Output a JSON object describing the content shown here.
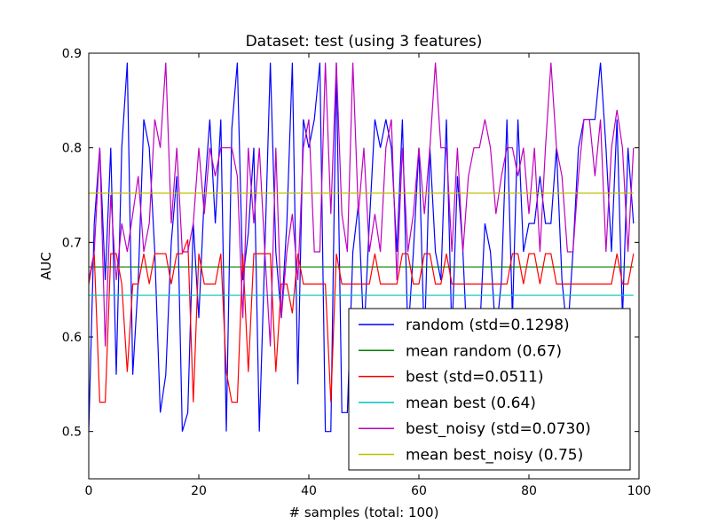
{
  "chart_data": {
    "type": "line",
    "title": "Dataset: test (using 3 features)",
    "xlabel": "# samples (total: 100)",
    "ylabel": "AUC",
    "xlim": [
      0,
      100
    ],
    "ylim": [
      0.45,
      0.9
    ],
    "xticks": [
      "0",
      "20",
      "40",
      "60",
      "80",
      "100"
    ],
    "yticks": [
      "0.5",
      "0.6",
      "0.7",
      "0.8",
      "0.9"
    ],
    "grid": false,
    "legend_position": "lower-right",
    "series": [
      {
        "name": "random (std=0.1298)",
        "color": "#0000ff",
        "x": [
          0,
          1,
          2,
          3,
          4,
          5,
          6,
          7,
          8,
          9,
          10,
          11,
          12,
          13,
          14,
          15,
          16,
          17,
          18,
          19,
          20,
          21,
          22,
          23,
          24,
          25,
          26,
          27,
          28,
          29,
          30,
          31,
          32,
          33,
          34,
          35,
          36,
          37,
          38,
          39,
          40,
          41,
          42,
          43,
          44,
          45,
          46,
          47,
          48,
          49,
          50,
          51,
          52,
          53,
          54,
          55,
          56,
          57,
          58,
          59,
          60,
          61,
          62,
          63,
          64,
          65,
          66,
          67,
          68,
          69,
          70,
          71,
          72,
          73,
          74,
          75,
          76,
          77,
          78,
          79,
          80,
          81,
          82,
          83,
          84,
          85,
          86,
          87,
          88,
          89,
          90,
          91,
          92,
          93,
          94,
          95,
          96,
          97,
          98,
          99
        ],
        "values": [
          0.5,
          0.72,
          0.8,
          0.66,
          0.8,
          0.56,
          0.8,
          0.89,
          0.56,
          0.66,
          0.83,
          0.8,
          0.69,
          0.52,
          0.56,
          0.7,
          0.77,
          0.5,
          0.52,
          0.72,
          0.62,
          0.75,
          0.83,
          0.72,
          0.83,
          0.5,
          0.82,
          0.89,
          0.66,
          0.71,
          0.8,
          0.5,
          0.69,
          0.89,
          0.69,
          0.62,
          0.72,
          0.89,
          0.55,
          0.83,
          0.8,
          0.83,
          0.89,
          0.5,
          0.5,
          0.89,
          0.52,
          0.52,
          0.69,
          0.74,
          0.6,
          0.72,
          0.83,
          0.8,
          0.83,
          0.8,
          0.69,
          0.83,
          0.6,
          0.69,
          0.8,
          0.59,
          0.8,
          0.69,
          0.66,
          0.83,
          0.6,
          0.77,
          0.69,
          0.56,
          0.52,
          0.6,
          0.72,
          0.69,
          0.6,
          0.66,
          0.83,
          0.62,
          0.83,
          0.69,
          0.72,
          0.72,
          0.77,
          0.72,
          0.72,
          0.8,
          0.66,
          0.6,
          0.69,
          0.8,
          0.83,
          0.83,
          0.83,
          0.89,
          0.8,
          0.69,
          0.83,
          0.62,
          0.8,
          0.72
        ]
      },
      {
        "name": "mean random (0.67)",
        "color": "#008000",
        "x": [
          0,
          99
        ],
        "values": [
          0.674,
          0.674
        ]
      },
      {
        "name": "best (std=0.0511)",
        "color": "#ff0000",
        "x": [
          0,
          1,
          2,
          3,
          4,
          5,
          6,
          7,
          8,
          9,
          10,
          11,
          12,
          13,
          14,
          15,
          16,
          17,
          18,
          19,
          20,
          21,
          22,
          23,
          24,
          25,
          26,
          27,
          28,
          29,
          30,
          31,
          32,
          33,
          34,
          35,
          36,
          37,
          38,
          39,
          40,
          41,
          42,
          43,
          44,
          45,
          46,
          47,
          48,
          49,
          50,
          51,
          52,
          53,
          54,
          55,
          56,
          57,
          58,
          59,
          60,
          61,
          62,
          63,
          64,
          65,
          66,
          67,
          68,
          69,
          70,
          71,
          72,
          73,
          74,
          75,
          76,
          77,
          78,
          79,
          80,
          81,
          82,
          83,
          84,
          85,
          86,
          87,
          88,
          89,
          90,
          91,
          92,
          93,
          94,
          95,
          96,
          97,
          98,
          99
        ],
        "values": [
          0.656,
          0.688,
          0.531,
          0.531,
          0.688,
          0.688,
          0.656,
          0.563,
          0.656,
          0.656,
          0.688,
          0.656,
          0.688,
          0.688,
          0.688,
          0.656,
          0.688,
          0.688,
          0.703,
          0.531,
          0.688,
          0.656,
          0.656,
          0.656,
          0.688,
          0.563,
          0.531,
          0.531,
          0.688,
          0.563,
          0.688,
          0.688,
          0.688,
          0.688,
          0.563,
          0.656,
          0.656,
          0.625,
          0.688,
          0.656,
          0.656,
          0.656,
          0.656,
          0.656,
          0.531,
          0.688,
          0.656,
          0.656,
          0.656,
          0.656,
          0.656,
          0.656,
          0.688,
          0.656,
          0.656,
          0.656,
          0.656,
          0.688,
          0.688,
          0.656,
          0.656,
          0.688,
          0.688,
          0.656,
          0.656,
          0.688,
          0.656,
          0.656,
          0.656,
          0.656,
          0.656,
          0.656,
          0.656,
          0.656,
          0.656,
          0.656,
          0.656,
          0.688,
          0.688,
          0.656,
          0.688,
          0.688,
          0.656,
          0.688,
          0.688,
          0.656,
          0.656,
          0.656,
          0.656,
          0.656,
          0.656,
          0.656,
          0.656,
          0.656,
          0.656,
          0.656,
          0.688,
          0.656,
          0.656,
          0.688
        ]
      },
      {
        "name": "mean best (0.64)",
        "color": "#00bfbf",
        "x": [
          0,
          99
        ],
        "values": [
          0.644,
          0.644
        ]
      },
      {
        "name": "best_noisy (std=0.0730)",
        "color": "#bf00bf",
        "x": [
          0,
          1,
          2,
          3,
          4,
          5,
          6,
          7,
          8,
          9,
          10,
          11,
          12,
          13,
          14,
          15,
          16,
          17,
          18,
          19,
          20,
          21,
          22,
          23,
          24,
          25,
          26,
          27,
          28,
          29,
          30,
          31,
          32,
          33,
          34,
          35,
          36,
          37,
          38,
          39,
          40,
          41,
          42,
          43,
          44,
          45,
          46,
          47,
          48,
          49,
          50,
          51,
          52,
          53,
          54,
          55,
          56,
          57,
          58,
          59,
          60,
          61,
          62,
          63,
          64,
          65,
          66,
          67,
          68,
          69,
          70,
          71,
          72,
          73,
          74,
          75,
          76,
          77,
          78,
          79,
          80,
          81,
          82,
          83,
          84,
          85,
          86,
          87,
          88,
          89,
          90,
          91,
          92,
          93,
          94,
          95,
          96,
          97,
          98,
          99
        ],
        "values": [
          0.66,
          0.69,
          0.8,
          0.59,
          0.75,
          0.66,
          0.72,
          0.69,
          0.73,
          0.77,
          0.69,
          0.72,
          0.83,
          0.8,
          0.89,
          0.72,
          0.8,
          0.69,
          0.69,
          0.72,
          0.8,
          0.73,
          0.8,
          0.77,
          0.8,
          0.8,
          0.8,
          0.77,
          0.62,
          0.8,
          0.72,
          0.8,
          0.69,
          0.59,
          0.8,
          0.62,
          0.69,
          0.73,
          0.66,
          0.8,
          0.83,
          0.69,
          0.69,
          0.89,
          0.73,
          0.89,
          0.73,
          0.69,
          0.89,
          0.73,
          0.8,
          0.69,
          0.73,
          0.69,
          0.8,
          0.83,
          0.66,
          0.8,
          0.69,
          0.73,
          0.8,
          0.73,
          0.8,
          0.89,
          0.8,
          0.8,
          0.69,
          0.8,
          0.69,
          0.77,
          0.8,
          0.8,
          0.83,
          0.8,
          0.73,
          0.77,
          0.8,
          0.8,
          0.77,
          0.8,
          0.73,
          0.8,
          0.69,
          0.8,
          0.89,
          0.8,
          0.77,
          0.69,
          0.69,
          0.77,
          0.83,
          0.83,
          0.77,
          0.83,
          0.69,
          0.8,
          0.84,
          0.8,
          0.69,
          0.8
        ]
      },
      {
        "name": "mean best_noisy (0.75)",
        "color": "#bfbf00",
        "x": [
          0,
          99
        ],
        "values": [
          0.752,
          0.752
        ]
      }
    ]
  }
}
